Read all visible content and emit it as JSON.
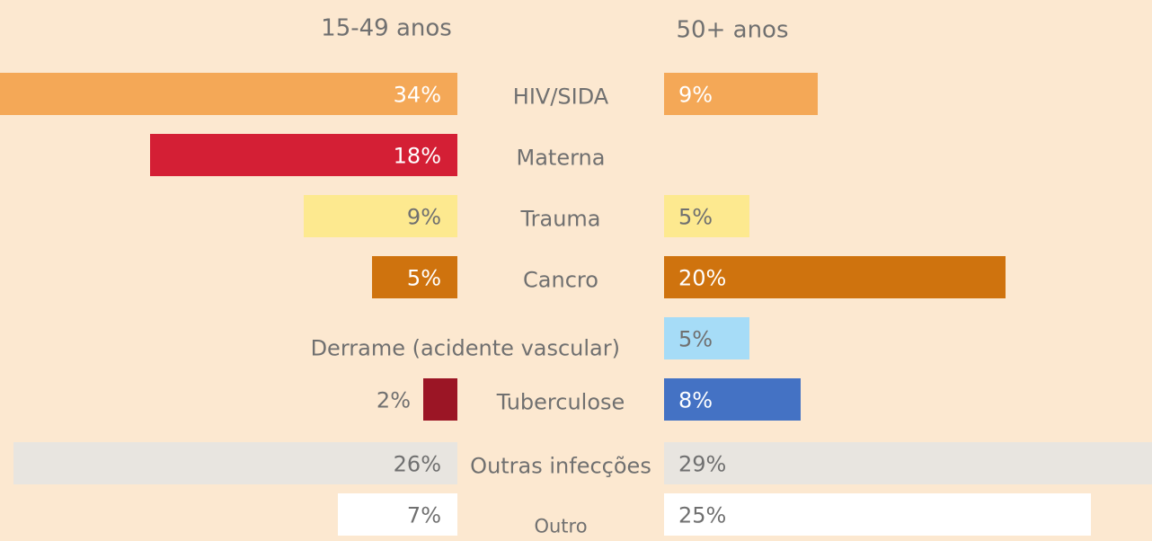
{
  "chart_data": {
    "type": "butterfly",
    "categories": [
      "HIV/SIDA",
      "Materna",
      "Trauma",
      "Cancro",
      "Derrame (acidente vascular)",
      "Tuberculose",
      "Outras infecções",
      "Outro"
    ],
    "series": [
      {
        "name": "15-49 anos",
        "values": [
          34,
          18,
          9,
          5,
          null,
          2,
          26,
          7
        ],
        "value_labels": [
          "34%",
          "18%",
          "9%",
          "5%",
          null,
          "2%",
          "26%",
          "7%"
        ],
        "colors": [
          "#f4a857",
          "#d41f35",
          "#fde98f",
          "#cf730e",
          "#a6dcf7",
          "#9b1525",
          "#e8e5e0",
          "#ffffff"
        ]
      },
      {
        "name": "50+ anos",
        "values": [
          9,
          null,
          5,
          20,
          5,
          8,
          29,
          25
        ],
        "value_labels": [
          "9%",
          null,
          "5%",
          "20%",
          "5%",
          "8%",
          "29%",
          "25%"
        ],
        "colors": [
          "#f4a857",
          "#d41f35",
          "#fde98f",
          "#cf730e",
          "#a6dcf7",
          "#4472c4",
          "#e8e5e0",
          "#ffffff"
        ]
      }
    ]
  }
}
